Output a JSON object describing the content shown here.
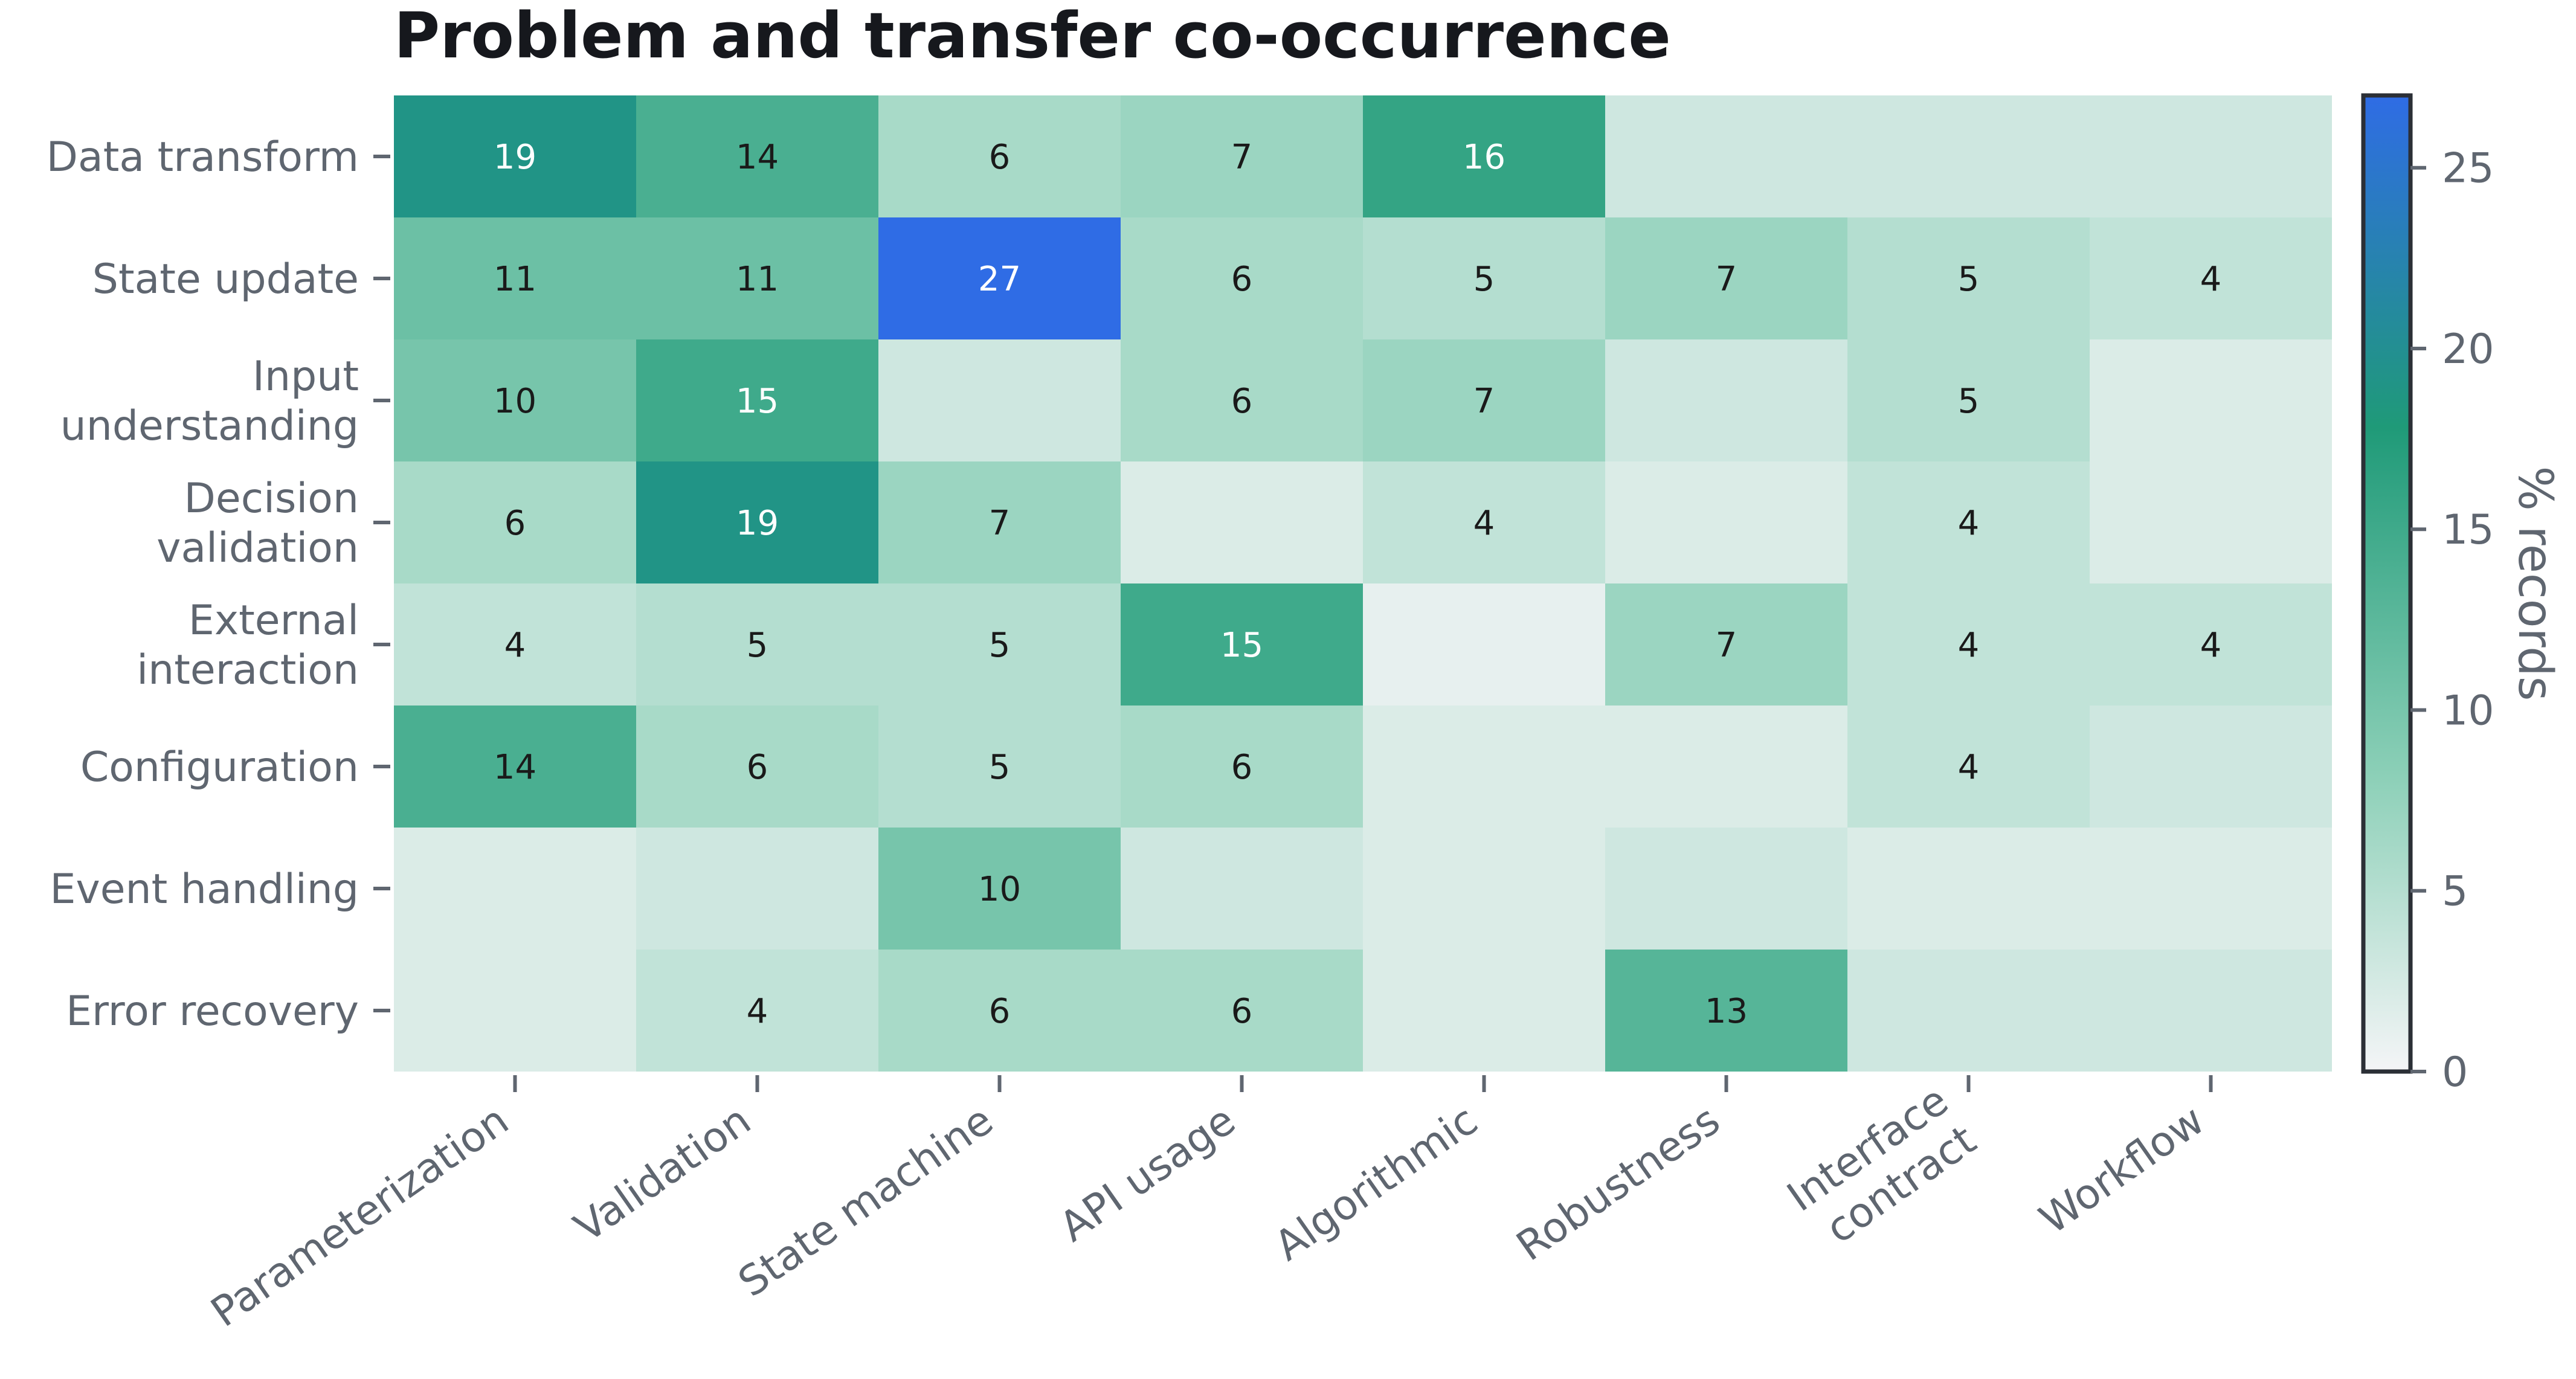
{
  "chart_data": {
    "type": "heatmap",
    "title": "Problem and transfer co-occurrence",
    "rows": [
      [
        "Data transform"
      ],
      [
        "State update"
      ],
      [
        "Input",
        "understanding"
      ],
      [
        "Decision",
        "validation"
      ],
      [
        "External",
        "interaction"
      ],
      [
        "Configuration"
      ],
      [
        "Event handling"
      ],
      [
        "Error recovery"
      ]
    ],
    "columns": [
      [
        "Parameterization"
      ],
      [
        "Validation"
      ],
      [
        "State machine"
      ],
      [
        "API usage"
      ],
      [
        "Algorithmic"
      ],
      [
        "Robustness"
      ],
      [
        "Interface",
        "contract"
      ],
      [
        "Workflow"
      ]
    ],
    "values": [
      [
        19,
        14,
        6,
        7,
        16,
        3,
        3,
        3
      ],
      [
        11,
        11,
        27,
        6,
        5,
        7,
        5,
        4
      ],
      [
        10,
        15,
        3,
        6,
        7,
        3,
        5,
        2
      ],
      [
        6,
        19,
        7,
        2,
        4,
        2,
        4,
        2
      ],
      [
        4,
        5,
        5,
        15,
        1,
        7,
        4,
        4
      ],
      [
        14,
        6,
        5,
        6,
        2,
        2,
        4,
        3
      ],
      [
        2,
        3,
        10,
        3,
        2,
        3,
        2,
        2
      ],
      [
        2,
        4,
        6,
        6,
        2,
        13,
        3,
        3
      ]
    ],
    "annotation_threshold": 4,
    "colorbar": {
      "label": "% records",
      "min": 0,
      "max": 27,
      "ticks": [
        0,
        5,
        10,
        15,
        20,
        25
      ]
    },
    "colors": {
      "low": "#f4f5f7",
      "mid_light": "#8dd0b8",
      "mid": "#1f9a78",
      "high": "#2f6ce5",
      "text_dark": "#1a1a1a",
      "text_light": "#ffffff"
    }
  }
}
